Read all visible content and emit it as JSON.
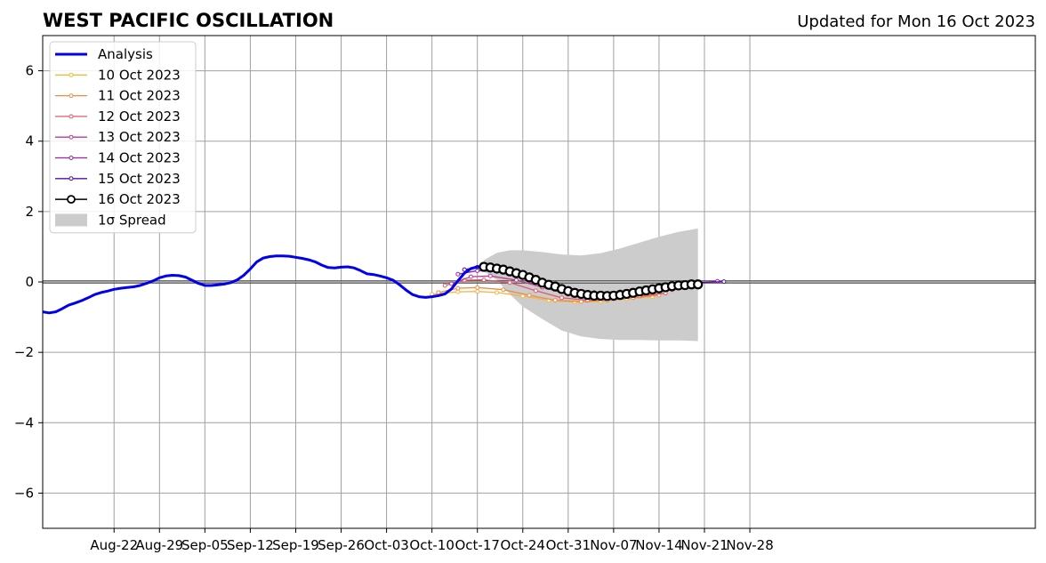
{
  "chart_data": {
    "type": "line",
    "title": "WEST PACIFIC OSCILLATION",
    "subtitle": "Updated for Mon 16 Oct 2023",
    "xlabel": "",
    "ylabel": "",
    "x_range_day_of_year": [
      223,
      376
    ],
    "x_tick_labels": [
      "Aug-22",
      "Aug-29",
      "Sep-05",
      "Sep-12",
      "Sep-19",
      "Sep-26",
      "Oct-03",
      "Oct-10",
      "Oct-17",
      "Oct-24",
      "Oct-31",
      "Nov-07",
      "Nov-14",
      "Nov-21",
      "Nov-28"
    ],
    "ylim": [
      -7,
      7
    ],
    "y_ticks": [
      -6,
      -4,
      -2,
      0,
      2,
      4,
      6
    ],
    "y_tick_labels": [
      "−6",
      "−4",
      "−2",
      "0",
      "2",
      "4",
      "6"
    ],
    "grid": true,
    "zero_line": true,
    "legend_position": "top-left",
    "legend": [
      {
        "label": "Analysis",
        "color": "#0000ee",
        "style": "thick-line"
      },
      {
        "label": "10 Oct 2023",
        "color": "#f5b642",
        "style": "line-dot"
      },
      {
        "label": "11 Oct 2023",
        "color": "#ee8a48",
        "style": "line-dot"
      },
      {
        "label": "12 Oct 2023",
        "color": "#dd5c6a",
        "style": "line-dot"
      },
      {
        "label": "13 Oct 2023",
        "color": "#c0398f",
        "style": "line-dot"
      },
      {
        "label": "14 Oct 2023",
        "color": "#9a1fb0",
        "style": "line-dot"
      },
      {
        "label": "15 Oct 2023",
        "color": "#5a0f9a",
        "style": "line-dot"
      },
      {
        "label": "16 Oct 2023",
        "color": "#000000",
        "style": "line-circle"
      },
      {
        "label": "1σ Spread",
        "color": "#cccccc",
        "style": "patch"
      }
    ],
    "analysis": {
      "name": "Analysis",
      "color": "#0000ee",
      "points": [
        [
          223,
          -0.85
        ],
        [
          224,
          -0.88
        ],
        [
          225,
          -0.85
        ],
        [
          226,
          -0.76
        ],
        [
          227,
          -0.66
        ],
        [
          228,
          -0.6
        ],
        [
          229,
          -0.53
        ],
        [
          230,
          -0.45
        ],
        [
          231,
          -0.36
        ],
        [
          232,
          -0.3
        ],
        [
          233,
          -0.26
        ],
        [
          234,
          -0.21
        ],
        [
          235,
          -0.18
        ],
        [
          236,
          -0.16
        ],
        [
          237,
          -0.14
        ],
        [
          238,
          -0.1
        ],
        [
          239,
          -0.04
        ],
        [
          240,
          0.03
        ],
        [
          241,
          0.12
        ],
        [
          242,
          0.17
        ],
        [
          243,
          0.19
        ],
        [
          244,
          0.18
        ],
        [
          245,
          0.14
        ],
        [
          246,
          0.05
        ],
        [
          247,
          -0.04
        ],
        [
          248,
          -0.1
        ],
        [
          249,
          -0.1
        ],
        [
          250,
          -0.08
        ],
        [
          251,
          -0.06
        ],
        [
          252,
          -0.02
        ],
        [
          253,
          0.06
        ],
        [
          254,
          0.19
        ],
        [
          255,
          0.37
        ],
        [
          256,
          0.57
        ],
        [
          257,
          0.68
        ],
        [
          258,
          0.72
        ],
        [
          259,
          0.74
        ],
        [
          260,
          0.74
        ],
        [
          261,
          0.73
        ],
        [
          262,
          0.7
        ],
        [
          263,
          0.67
        ],
        [
          264,
          0.63
        ],
        [
          265,
          0.57
        ],
        [
          266,
          0.48
        ],
        [
          267,
          0.41
        ],
        [
          268,
          0.4
        ],
        [
          269,
          0.42
        ],
        [
          270,
          0.43
        ],
        [
          271,
          0.4
        ],
        [
          272,
          0.32
        ],
        [
          273,
          0.23
        ],
        [
          274,
          0.21
        ],
        [
          275,
          0.17
        ],
        [
          276,
          0.12
        ],
        [
          277,
          0.05
        ],
        [
          278,
          -0.08
        ],
        [
          279,
          -0.23
        ],
        [
          280,
          -0.36
        ],
        [
          281,
          -0.42
        ],
        [
          282,
          -0.44
        ],
        [
          283,
          -0.42
        ],
        [
          284,
          -0.39
        ],
        [
          285,
          -0.34
        ],
        [
          286,
          -0.2
        ],
        [
          287,
          0.03
        ],
        [
          288,
          0.25
        ],
        [
          289,
          0.38
        ],
        [
          290,
          0.43
        ],
        [
          291,
          0.43
        ]
      ]
    },
    "forecasts": [
      {
        "name": "10 Oct 2023",
        "color": "#f5b642",
        "points": [
          [
            283,
            -0.35
          ],
          [
            287,
            -0.28
          ],
          [
            290,
            -0.27
          ],
          [
            293,
            -0.3
          ],
          [
            297,
            -0.4
          ],
          [
            301,
            -0.52
          ],
          [
            305,
            -0.57
          ],
          [
            309,
            -0.55
          ],
          [
            313,
            -0.48
          ],
          [
            317,
            -0.42
          ]
        ]
      },
      {
        "name": "11 Oct 2023",
        "color": "#ee8a48",
        "points": [
          [
            284,
            -0.3
          ],
          [
            287,
            -0.18
          ],
          [
            290,
            -0.16
          ],
          [
            294,
            -0.22
          ],
          [
            298,
            -0.38
          ],
          [
            302,
            -0.52
          ],
          [
            306,
            -0.56
          ],
          [
            310,
            -0.52
          ],
          [
            314,
            -0.45
          ],
          [
            318,
            -0.38
          ]
        ]
      },
      {
        "name": "12 Oct 2023",
        "color": "#dd5c6a",
        "points": [
          [
            285,
            -0.1
          ],
          [
            288,
            0.05
          ],
          [
            291,
            0.06
          ],
          [
            295,
            -0.02
          ],
          [
            299,
            -0.25
          ],
          [
            303,
            -0.45
          ],
          [
            307,
            -0.52
          ],
          [
            311,
            -0.48
          ],
          [
            315,
            -0.4
          ],
          [
            319,
            -0.32
          ]
        ]
      },
      {
        "name": "13 Oct 2023",
        "color": "#c0398f",
        "points": [
          [
            286,
            -0.05
          ],
          [
            289,
            0.15
          ],
          [
            292,
            0.17
          ],
          [
            296,
            0.05
          ],
          [
            300,
            -0.15
          ],
          [
            304,
            -0.35
          ],
          [
            308,
            -0.45
          ],
          [
            312,
            -0.42
          ],
          [
            316,
            -0.32
          ],
          [
            320,
            -0.22
          ]
        ]
      },
      {
        "name": "14 Oct 2023",
        "color": "#9a1fb0",
        "points": [
          [
            287,
            0.22
          ],
          [
            290,
            0.32
          ],
          [
            293,
            0.3
          ],
          [
            297,
            0.18
          ],
          [
            301,
            -0.05
          ],
          [
            305,
            -0.25
          ],
          [
            309,
            -0.33
          ],
          [
            313,
            -0.3
          ],
          [
            317,
            -0.2
          ],
          [
            321,
            -0.1
          ],
          [
            324,
            -0.03
          ],
          [
            327,
            0.02
          ]
        ]
      },
      {
        "name": "15 Oct 2023",
        "color": "#5a0f9a",
        "points": [
          [
            288,
            0.35
          ],
          [
            290,
            0.42
          ],
          [
            293,
            0.38
          ],
          [
            296,
            0.28
          ],
          [
            300,
            0.05
          ],
          [
            304,
            -0.18
          ],
          [
            308,
            -0.3
          ],
          [
            312,
            -0.28
          ],
          [
            316,
            -0.2
          ],
          [
            320,
            -0.1
          ],
          [
            324,
            -0.02
          ],
          [
            328,
            0.01
          ]
        ]
      },
      {
        "name": "16 Oct 2023",
        "color": "#000000",
        "points": [
          [
            291,
            0.43
          ],
          [
            292,
            0.41
          ],
          [
            293,
            0.38
          ],
          [
            294,
            0.35
          ],
          [
            295,
            0.3
          ],
          [
            296,
            0.25
          ],
          [
            297,
            0.2
          ],
          [
            298,
            0.13
          ],
          [
            299,
            0.06
          ],
          [
            300,
            -0.02
          ],
          [
            301,
            -0.08
          ],
          [
            302,
            -0.13
          ],
          [
            303,
            -0.2
          ],
          [
            304,
            -0.26
          ],
          [
            305,
            -0.31
          ],
          [
            306,
            -0.34
          ],
          [
            307,
            -0.37
          ],
          [
            308,
            -0.39
          ],
          [
            309,
            -0.39
          ],
          [
            310,
            -0.4
          ],
          [
            311,
            -0.39
          ],
          [
            312,
            -0.37
          ],
          [
            313,
            -0.34
          ],
          [
            314,
            -0.31
          ],
          [
            315,
            -0.27
          ],
          [
            316,
            -0.24
          ],
          [
            317,
            -0.21
          ],
          [
            318,
            -0.18
          ],
          [
            319,
            -0.15
          ],
          [
            320,
            -0.12
          ],
          [
            321,
            -0.1
          ],
          [
            322,
            -0.09
          ],
          [
            323,
            -0.07
          ],
          [
            324,
            -0.07
          ]
        ]
      }
    ],
    "spread": {
      "name": "1σ Spread",
      "color": "#cccccc",
      "x": [
        291,
        293,
        295,
        297,
        300,
        303,
        306,
        309,
        312,
        315,
        318,
        321,
        324
      ],
      "upper": [
        0.62,
        0.83,
        0.9,
        0.9,
        0.85,
        0.78,
        0.75,
        0.82,
        0.95,
        1.12,
        1.28,
        1.42,
        1.52
      ],
      "lower": [
        0.3,
        0.05,
        -0.35,
        -0.7,
        -1.05,
        -1.38,
        -1.55,
        -1.62,
        -1.65,
        -1.65,
        -1.66,
        -1.66,
        -1.68
      ]
    }
  }
}
